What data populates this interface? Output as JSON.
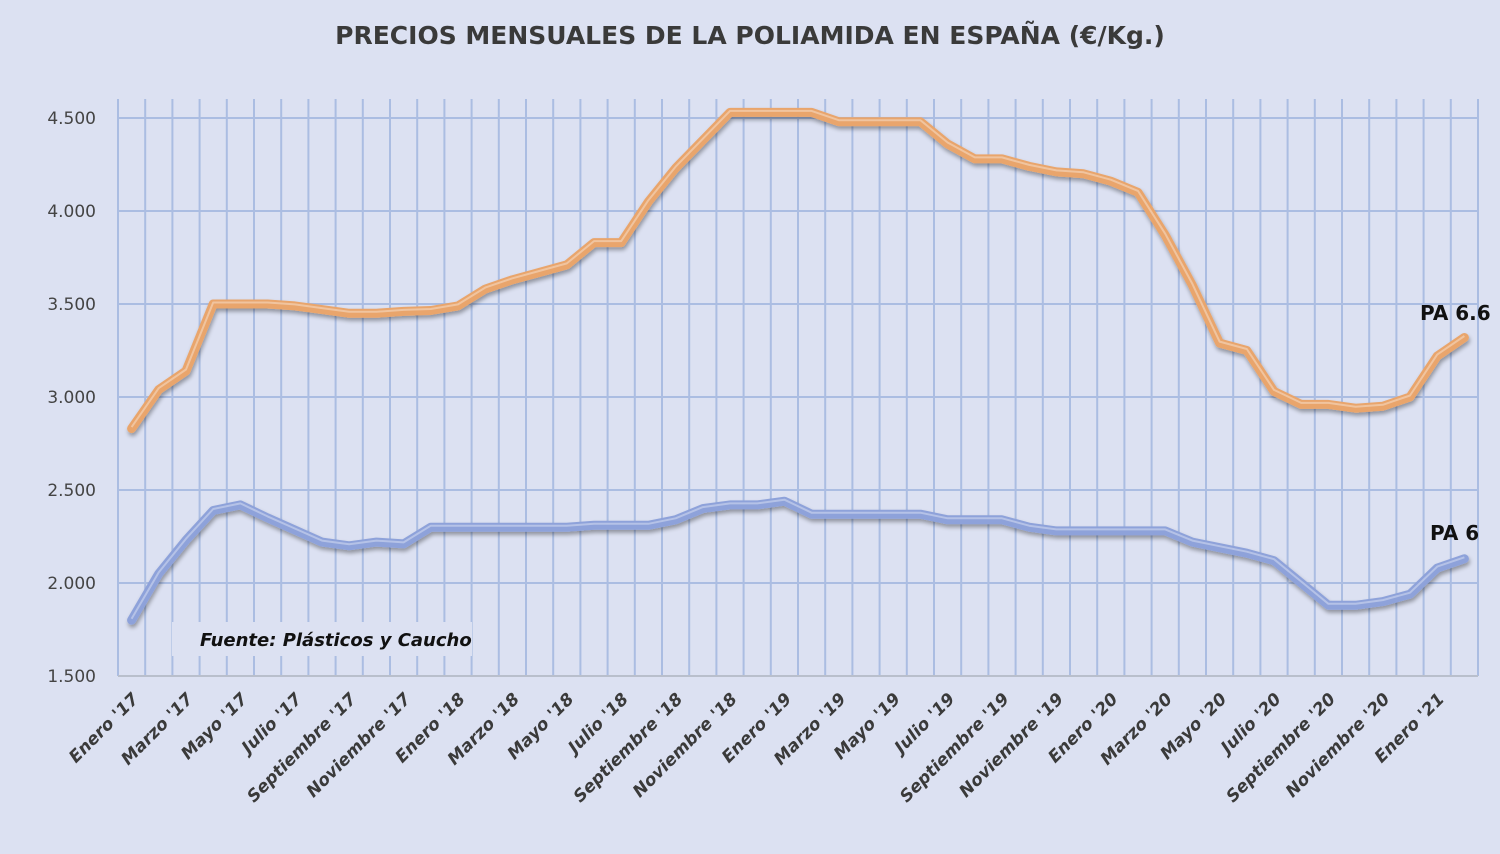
{
  "chart_data": {
    "type": "line",
    "title": "PRECIOS MENSUALES DE LA POLIAMIDA EN ESPAÑA (€/Kg.)",
    "xlabel": "",
    "ylabel": "",
    "ylim": [
      1500,
      4500
    ],
    "yticks": [
      "1.500",
      "2.000",
      "2.500",
      "3.000",
      "3.500",
      "4.000",
      "4.500"
    ],
    "ytick_values": [
      1500,
      2000,
      2500,
      3000,
      3500,
      4000,
      4500
    ],
    "x_count": 50,
    "x_start": "Enero '17",
    "tick_every": 2,
    "tick_labels": [
      "Enero '17",
      "Marzo '17",
      "Mayo '17",
      "Julio '17",
      "Septiembre  '17",
      "Noviembre '17",
      "Enero '18",
      "Marzo '18",
      "Mayo '18",
      "Julio '18",
      "Septiembre  '18",
      "Noviembre '18",
      "Enero '19",
      "Marzo '19",
      "Mayo '19",
      "Julio '19",
      "Septiembre '19",
      "Noviembre '19",
      "Enero '20",
      "Marzo '20",
      "Mayo '20",
      "Julio '20",
      "Septiembre '20",
      "Noviembre '20",
      "Enero '21"
    ],
    "grid": true,
    "series": [
      {
        "name": "PA 6.6",
        "color": "#e9a56c",
        "values": [
          2830,
          3040,
          3140,
          3500,
          3500,
          3500,
          3490,
          3470,
          3450,
          3450,
          3460,
          3465,
          3490,
          3580,
          3630,
          3670,
          3710,
          3830,
          3830,
          4050,
          4230,
          4380,
          4530,
          4530,
          4530,
          4530,
          4480,
          4480,
          4480,
          4480,
          4360,
          4280,
          4280,
          4240,
          4210,
          4200,
          4160,
          4100,
          3870,
          3600,
          3290,
          3250,
          3030,
          2960,
          2960,
          2940,
          2950,
          3000,
          3220,
          3320
        ]
      },
      {
        "name": "PA 6",
        "color": "#8ea2da",
        "values": [
          1800,
          2050,
          2230,
          2390,
          2420,
          2350,
          2285,
          2220,
          2200,
          2220,
          2210,
          2300,
          2300,
          2300,
          2300,
          2300,
          2300,
          2310,
          2310,
          2310,
          2340,
          2400,
          2420,
          2420,
          2440,
          2370,
          2370,
          2370,
          2370,
          2370,
          2340,
          2340,
          2340,
          2300,
          2280,
          2280,
          2280,
          2280,
          2280,
          2220,
          2190,
          2160,
          2120,
          2000,
          1880,
          1880,
          1900,
          1940,
          2080,
          2130
        ]
      }
    ],
    "annotations": [
      "Fuente: Plásticos  y Caucho"
    ]
  }
}
